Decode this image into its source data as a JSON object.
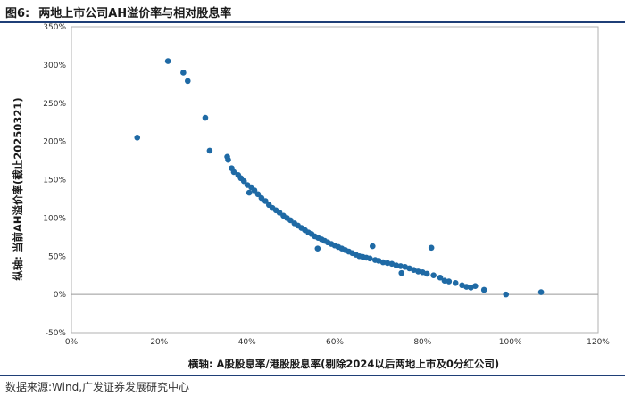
{
  "title": {
    "figure_label": "图6:",
    "text": "两地上市公司AH溢价率与相对股息率"
  },
  "source": "数据来源:Wind,广发证券发展研究中心",
  "colors": {
    "accent": "#1f3f77",
    "point": "#1f6aa5",
    "zero_line": "#999999"
  },
  "chart_data": {
    "type": "scatter",
    "xlabel": "横轴: A股股息率/港股股息率(剔除2024以后两地上市及0分红公司)",
    "ylabel": "纵轴: 当前AH溢价率(截止20250321)",
    "xlim": [
      0,
      120
    ],
    "ylim": [
      -50,
      350
    ],
    "x_unit": "%",
    "y_unit": "%",
    "x_ticks": [
      "0%",
      "20%",
      "40%",
      "60%",
      "80%",
      "100%",
      "120%"
    ],
    "y_ticks": [
      "-50%",
      "0%",
      "50%",
      "100%",
      "150%",
      "200%",
      "250%",
      "300%",
      "350%"
    ],
    "grid": false,
    "points": [
      [
        15,
        205
      ],
      [
        22,
        305
      ],
      [
        25.5,
        290
      ],
      [
        26.5,
        279
      ],
      [
        30.5,
        231
      ],
      [
        31.5,
        188
      ],
      [
        35.5,
        180
      ],
      [
        35.7,
        176
      ],
      [
        36.5,
        165
      ],
      [
        37,
        160
      ],
      [
        38,
        156
      ],
      [
        38.6,
        152
      ],
      [
        39.3,
        148
      ],
      [
        40.1,
        143
      ],
      [
        40.5,
        133
      ],
      [
        41,
        140
      ],
      [
        41.7,
        136
      ],
      [
        42.5,
        131
      ],
      [
        43.3,
        126
      ],
      [
        44.2,
        122
      ],
      [
        45,
        117
      ],
      [
        45.8,
        113
      ],
      [
        46.6,
        110
      ],
      [
        47.4,
        107
      ],
      [
        48.3,
        103
      ],
      [
        49.1,
        100
      ],
      [
        49.9,
        97
      ],
      [
        50.8,
        93
      ],
      [
        51.6,
        90
      ],
      [
        52.4,
        87
      ],
      [
        53.2,
        84
      ],
      [
        54,
        81
      ],
      [
        54.7,
        79
      ],
      [
        55.4,
        76
      ],
      [
        56.1,
        60
      ],
      [
        56.2,
        74
      ],
      [
        57,
        72
      ],
      [
        57.7,
        70
      ],
      [
        58.4,
        68
      ],
      [
        59.2,
        66
      ],
      [
        60,
        64
      ],
      [
        60.8,
        62
      ],
      [
        61.6,
        60
      ],
      [
        62.4,
        58
      ],
      [
        63.2,
        56
      ],
      [
        64,
        54
      ],
      [
        64.8,
        52
      ],
      [
        65.6,
        50
      ],
      [
        66.4,
        49
      ],
      [
        67.2,
        48
      ],
      [
        68,
        47
      ],
      [
        68.6,
        63
      ],
      [
        69.2,
        45
      ],
      [
        70,
        44
      ],
      [
        71,
        42
      ],
      [
        72,
        41
      ],
      [
        73,
        40
      ],
      [
        74,
        38
      ],
      [
        75,
        37
      ],
      [
        75.2,
        28
      ],
      [
        76,
        36
      ],
      [
        77,
        34
      ],
      [
        78,
        32
      ],
      [
        79,
        30
      ],
      [
        80,
        29
      ],
      [
        81,
        27
      ],
      [
        82,
        61
      ],
      [
        82.5,
        25
      ],
      [
        84,
        22
      ],
      [
        85,
        18
      ],
      [
        86,
        17
      ],
      [
        87.5,
        15
      ],
      [
        89,
        12
      ],
      [
        90,
        10
      ],
      [
        91,
        9
      ],
      [
        92,
        11
      ],
      [
        94,
        6
      ],
      [
        99,
        0
      ],
      [
        107,
        3
      ]
    ]
  }
}
